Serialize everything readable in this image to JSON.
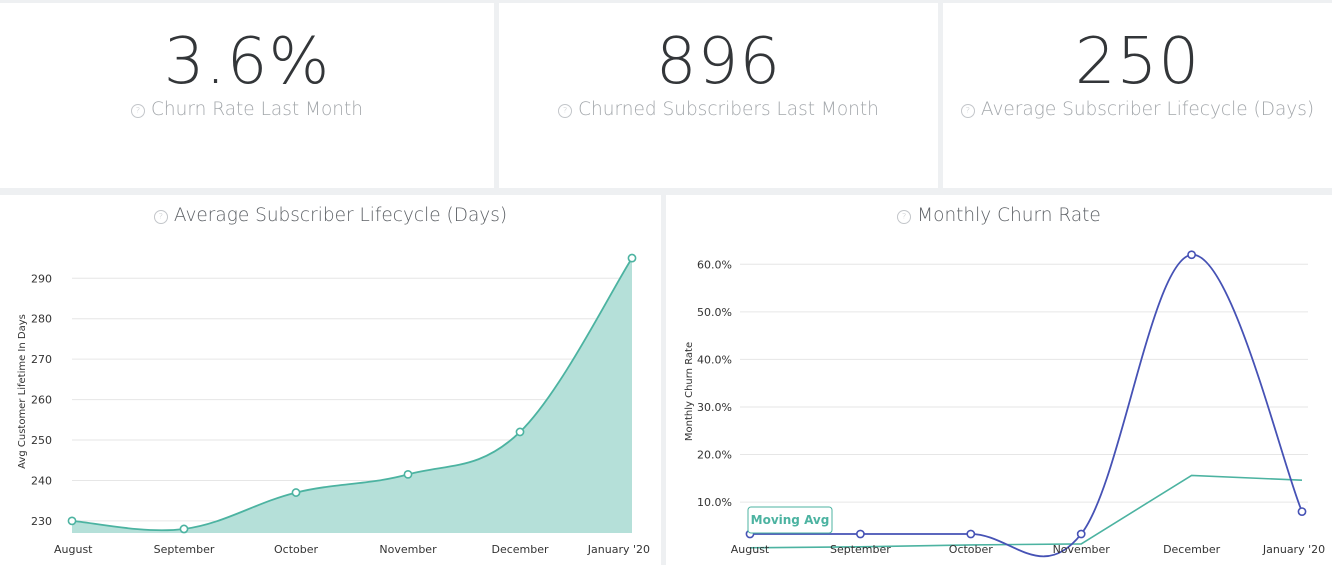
{
  "kpis": [
    {
      "value": "3.6%",
      "label": "Churn Rate Last Month"
    },
    {
      "value": "896",
      "label": "Churned Subscribers Last Month"
    },
    {
      "value": "250",
      "label": "Average Subscriber Lifecycle (Days)"
    }
  ],
  "help_icon": "question-circle-icon",
  "colors": {
    "teal": "#4cb3a1",
    "teal_fill": "#b5e0d9",
    "blue": "#4652b5",
    "grid": "#e6e6e6",
    "axis_text": "#333333"
  },
  "chart_data": [
    {
      "type": "area",
      "title": "Average Subscriber Lifecycle (Days)",
      "xlabel": "",
      "ylabel": "Avg Customer Lifetime In Days",
      "categories": [
        "August",
        "September",
        "October",
        "November",
        "December",
        "January '20"
      ],
      "series": [
        {
          "values": [
            230,
            228,
            237,
            241.5,
            252,
            295
          ]
        }
      ],
      "ylim": [
        227,
        297
      ],
      "yticks": [
        "230",
        "240",
        "250",
        "260",
        "270",
        "280",
        "290"
      ],
      "ytick_values": [
        230,
        240,
        250,
        260,
        270,
        280,
        290
      ],
      "grid": true
    },
    {
      "type": "line",
      "title": "Monthly Churn Rate",
      "xlabel": "",
      "ylabel": "Monthly Churn Rate",
      "categories": [
        "August",
        "September",
        "October",
        "November",
        "December",
        "January '20"
      ],
      "series": [
        {
          "values": [
            0.4,
            0.8,
            1.8,
            1.4,
            62.0,
            8.0
          ]
        },
        {
          "name": "Moving Avg",
          "values": [
            0.4,
            0.6,
            1.0,
            1.2,
            15.6,
            14.6
          ]
        }
      ],
      "ylim": [
        3.5,
        63
      ],
      "yticks": [
        "10.0%",
        "20.0%",
        "30.0%",
        "40.0%",
        "50.0%",
        "60.0%"
      ],
      "ytick_values": [
        10,
        20,
        30,
        40,
        50,
        60
      ],
      "grid": true,
      "annotation": "Moving Avg"
    }
  ]
}
